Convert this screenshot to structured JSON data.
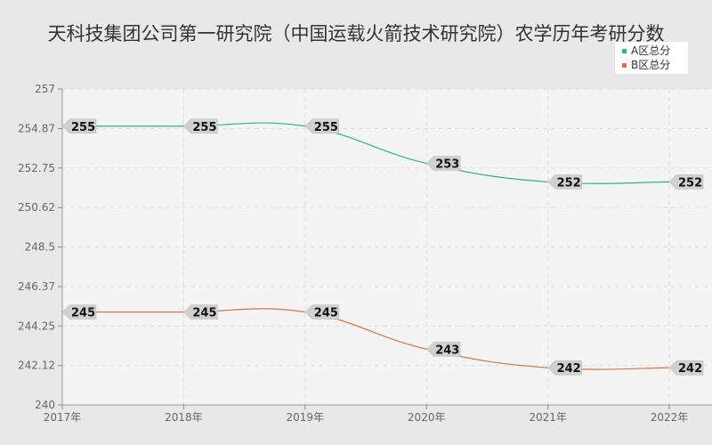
{
  "chart_data": {
    "type": "line",
    "title": "天科技集团公司第一研究院（中国运载火箭技术研究院）农学历年考研分数",
    "xlabel": "",
    "ylabel": "",
    "categories": [
      "2017年",
      "2018年",
      "2019年",
      "2020年",
      "2021年",
      "2022年"
    ],
    "ylim": [
      240,
      257
    ],
    "yticks": [
      "240",
      "242.12",
      "244.25",
      "246.37",
      "248.5",
      "250.62",
      "252.75",
      "254.87",
      "257"
    ],
    "grid": true,
    "legend_position": "top-right",
    "series": [
      {
        "name": "A区总分",
        "color": "#2db38a",
        "values": [
          255,
          255,
          255,
          253,
          252,
          252
        ]
      },
      {
        "name": "B区总分",
        "color": "#d9714a",
        "values": [
          245,
          245,
          245,
          243,
          242,
          242
        ]
      }
    ]
  }
}
